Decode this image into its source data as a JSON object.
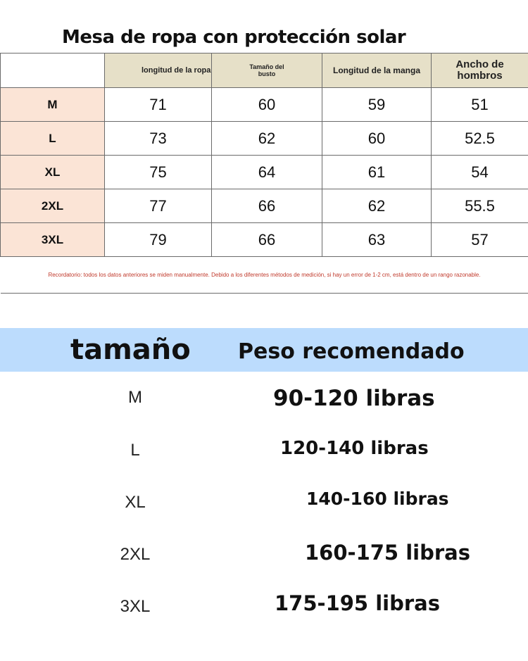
{
  "title": "Mesa de ropa con protección solar",
  "table": {
    "headers": [
      "",
      "longitud de la ropa",
      "Tamaño del busto",
      "Longitud de la manga",
      "Ancho de hombros"
    ],
    "rows": [
      [
        "M",
        "71",
        "60",
        "59",
        "51"
      ],
      [
        "L",
        "73",
        "62",
        "60",
        "52.5"
      ],
      [
        "XL",
        "75",
        "64",
        "61",
        "54"
      ],
      [
        "2XL",
        "77",
        "66",
        "62",
        "55.5"
      ],
      [
        "3XL",
        "79",
        "66",
        "63",
        "57"
      ]
    ],
    "note": "Recordatorio: todos los datos anteriores se miden manualmente. Debido a los diferentes métodos de medición, si hay un error de 1-2 cm, está dentro de un rango razonable."
  },
  "weights": {
    "size_header": "tamaño",
    "weight_header": "Peso recomendado",
    "rows": [
      {
        "size": "M",
        "weight": "90-120 libras"
      },
      {
        "size": "L",
        "weight": "120-140 libras"
      },
      {
        "size": "XL",
        "weight": "140-160 libras"
      },
      {
        "size": "2XL",
        "weight": "160-175 libras"
      },
      {
        "size": "3XL",
        "weight": "175-195 libras"
      }
    ]
  }
}
